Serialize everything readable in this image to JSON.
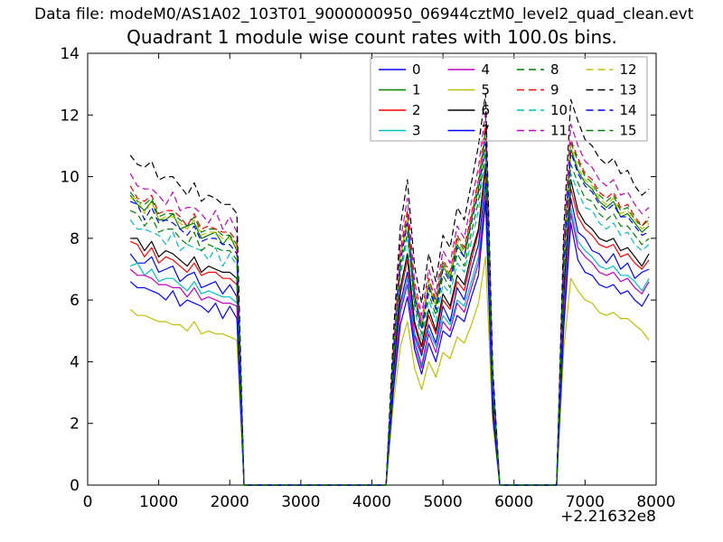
{
  "header": {
    "data_file_label": "Data file: modeM0/AS1A02_103T01_9000000950_06944cztM0_level2_quad_clean.evt"
  },
  "chart_data": {
    "type": "line",
    "title": "Quadrant 1 module wise count rates with 100.0s bins.",
    "xlabel": "",
    "ylabel": "",
    "x_offset_text": "+2.21632e8",
    "xlim": [
      0,
      8000
    ],
    "ylim": [
      0,
      14
    ],
    "xticks": [
      0,
      1000,
      2000,
      3000,
      4000,
      5000,
      6000,
      7000,
      8000
    ],
    "yticks": [
      0,
      2,
      4,
      6,
      8,
      10,
      12,
      14
    ],
    "grid": false,
    "legend": {
      "location": "upper center",
      "columns": 4,
      "frame_color": "#b2b2b2"
    },
    "x": [
      600,
      700,
      800,
      900,
      1000,
      1100,
      1200,
      1300,
      1400,
      1500,
      1600,
      1700,
      1800,
      1900,
      2000,
      2100,
      2200,
      4100,
      4200,
      4300,
      4400,
      4500,
      4600,
      4700,
      4800,
      4900,
      5000,
      5100,
      5200,
      5300,
      5400,
      5500,
      5600,
      5700,
      5800,
      6500,
      6600,
      6700,
      6800,
      6900,
      7000,
      7100,
      7200,
      7300,
      7400,
      7500,
      7600,
      7700,
      7800,
      7900
    ],
    "series": [
      {
        "name": "0",
        "color": "#0000ff",
        "dash": "solid",
        "values": [
          7.5,
          7.2,
          7.2,
          7.4,
          6.9,
          7.0,
          7.1,
          6.6,
          6.8,
          6.9,
          6.4,
          6.5,
          6.6,
          6.2,
          6.5,
          6.1,
          0,
          0,
          0,
          3.4,
          5.9,
          6.9,
          4.9,
          4.2,
          5.2,
          4.6,
          5.8,
          5.3,
          6.4,
          6.0,
          7.0,
          7.8,
          9.8,
          2.7,
          0,
          0,
          0,
          5.9,
          9.3,
          8.2,
          8.0,
          7.6,
          7.5,
          7.2,
          7.5,
          7.0,
          7.2,
          6.7,
          6.9,
          7.0
        ]
      },
      {
        "name": "1",
        "color": "#007f00",
        "dash": "solid",
        "values": [
          9.4,
          9.1,
          8.9,
          9.2,
          8.6,
          8.6,
          8.8,
          8.3,
          8.4,
          8.5,
          8.0,
          8.1,
          8.2,
          7.8,
          8.1,
          7.6,
          0,
          0,
          0,
          4.2,
          7.4,
          8.6,
          6.1,
          5.1,
          6.5,
          5.8,
          7.1,
          6.7,
          7.8,
          7.4,
          8.6,
          9.6,
          11.4,
          3.3,
          0,
          0,
          0,
          7.3,
          10.9,
          10.2,
          9.8,
          9.6,
          9.2,
          9.0,
          9.2,
          8.7,
          8.8,
          8.5,
          8.2,
          8.4
        ]
      },
      {
        "name": "2",
        "color": "#ff0000",
        "dash": "solid",
        "values": [
          7.9,
          7.8,
          7.4,
          7.7,
          7.2,
          7.4,
          7.3,
          7.1,
          6.9,
          7.2,
          6.8,
          6.9,
          6.9,
          6.7,
          6.7,
          6.5,
          0,
          0,
          0,
          3.6,
          6.2,
          7.3,
          5.2,
          4.3,
          5.5,
          4.9,
          6.0,
          5.7,
          6.6,
          6.3,
          7.3,
          8.2,
          10.2,
          2.8,
          0,
          0,
          0,
          6.2,
          9.6,
          8.7,
          8.3,
          8.1,
          7.8,
          7.7,
          7.8,
          7.4,
          7.5,
          7.2,
          7.0,
          7.3
        ]
      },
      {
        "name": "3",
        "color": "#00bfbf",
        "dash": "solid",
        "values": [
          7.1,
          7.2,
          6.8,
          7.0,
          6.6,
          6.7,
          6.7,
          6.5,
          6.3,
          6.6,
          6.2,
          6.3,
          6.2,
          6.1,
          6.1,
          5.9,
          0,
          0,
          0,
          3.2,
          5.7,
          6.7,
          4.8,
          3.9,
          5.0,
          4.5,
          5.5,
          5.2,
          6.0,
          5.8,
          6.6,
          7.4,
          9.6,
          2.6,
          0,
          0,
          0,
          5.6,
          9.0,
          7.9,
          7.6,
          7.4,
          7.1,
          7.0,
          7.1,
          6.8,
          6.8,
          6.6,
          6.3,
          6.7
        ]
      },
      {
        "name": "4",
        "color": "#bf00bf",
        "dash": "solid",
        "values": [
          7.0,
          6.8,
          6.8,
          6.7,
          6.5,
          6.5,
          6.4,
          6.4,
          6.1,
          6.4,
          6.0,
          6.1,
          6.0,
          5.9,
          5.9,
          5.8,
          0,
          0,
          0,
          3.1,
          5.6,
          6.5,
          4.6,
          3.8,
          4.9,
          4.3,
          5.3,
          5.0,
          5.9,
          5.6,
          6.4,
          7.2,
          9.4,
          2.5,
          0,
          0,
          0,
          5.5,
          8.8,
          7.7,
          7.4,
          7.2,
          6.9,
          6.8,
          6.9,
          6.6,
          6.7,
          6.4,
          6.2,
          6.6
        ]
      },
      {
        "name": "5",
        "color": "#bfbf00",
        "dash": "solid",
        "values": [
          5.7,
          5.5,
          5.5,
          5.4,
          5.3,
          5.3,
          5.2,
          5.2,
          5.0,
          5.3,
          4.9,
          5.0,
          4.9,
          4.9,
          4.8,
          4.7,
          0,
          0,
          0,
          2.6,
          4.5,
          5.3,
          3.8,
          3.1,
          4.0,
          3.5,
          4.3,
          4.1,
          4.8,
          4.6,
          5.2,
          5.9,
          7.4,
          2.0,
          0,
          0,
          0,
          4.4,
          6.7,
          6.3,
          6.0,
          5.9,
          5.6,
          5.5,
          5.6,
          5.4,
          5.4,
          5.2,
          5.0,
          4.7
        ]
      },
      {
        "name": "6",
        "color": "#000000",
        "dash": "solid",
        "values": [
          8.0,
          8.0,
          7.6,
          7.9,
          7.4,
          7.6,
          7.5,
          7.3,
          7.1,
          7.4,
          6.9,
          7.1,
          7.0,
          6.9,
          6.9,
          6.7,
          0,
          0,
          0,
          3.6,
          6.4,
          7.5,
          5.3,
          4.5,
          5.7,
          5.0,
          6.2,
          5.8,
          6.8,
          6.5,
          7.5,
          8.3,
          10.4,
          2.9,
          0,
          0,
          0,
          6.3,
          9.9,
          8.9,
          8.5,
          8.3,
          8.0,
          7.9,
          8.0,
          7.6,
          7.7,
          7.4,
          7.1,
          7.5
        ]
      },
      {
        "name": "7",
        "color": "#0000ff",
        "dash": "solid",
        "values": [
          6.6,
          6.4,
          6.4,
          6.3,
          6.2,
          6.0,
          6.3,
          5.8,
          6.0,
          5.9,
          5.8,
          5.6,
          5.9,
          5.4,
          5.8,
          5.4,
          0,
          0,
          0,
          3.0,
          5.2,
          6.1,
          4.4,
          3.6,
          4.6,
          4.0,
          5.0,
          4.8,
          5.5,
          5.3,
          6.1,
          6.8,
          9.2,
          2.3,
          0,
          0,
          0,
          5.1,
          8.5,
          7.3,
          6.9,
          6.8,
          6.5,
          6.4,
          6.5,
          6.2,
          6.3,
          6.0,
          5.8,
          6.2
        ]
      },
      {
        "name": "8",
        "color": "#007f00",
        "dash": "dashed",
        "values": [
          9.5,
          9.2,
          9.1,
          9.3,
          8.7,
          8.8,
          8.8,
          8.6,
          8.4,
          8.7,
          8.2,
          8.3,
          8.3,
          8.1,
          8.1,
          7.8,
          0,
          0,
          0,
          4.3,
          7.5,
          8.8,
          6.3,
          5.2,
          6.7,
          5.9,
          7.2,
          6.8,
          8.0,
          7.6,
          8.7,
          9.8,
          11.5,
          3.4,
          0,
          0,
          0,
          7.4,
          11.1,
          10.5,
          10.0,
          9.8,
          9.4,
          9.2,
          9.4,
          8.9,
          9.0,
          8.6,
          8.4,
          8.6
        ]
      },
      {
        "name": "9",
        "color": "#ff0000",
        "dash": "dashed",
        "values": [
          9.7,
          9.3,
          9.2,
          9.4,
          8.8,
          8.9,
          8.9,
          8.7,
          8.4,
          8.8,
          8.3,
          8.4,
          8.3,
          8.2,
          8.2,
          7.9,
          0,
          0,
          0,
          4.3,
          7.6,
          8.9,
          6.3,
          5.3,
          6.7,
          6.0,
          7.3,
          6.9,
          8.1,
          7.7,
          8.8,
          9.9,
          11.7,
          3.5,
          0,
          0,
          0,
          7.5,
          11.2,
          10.6,
          10.1,
          9.9,
          9.5,
          9.3,
          9.5,
          9.0,
          9.1,
          8.7,
          8.4,
          8.7
        ]
      },
      {
        "name": "10",
        "color": "#00bfbf",
        "dash": "dashed",
        "values": [
          8.6,
          8.3,
          8.3,
          8.2,
          8.1,
          7.8,
          8.2,
          7.6,
          7.8,
          7.7,
          7.6,
          7.3,
          7.7,
          7.1,
          7.5,
          7.1,
          0,
          0,
          0,
          3.9,
          6.8,
          8.0,
          5.7,
          4.7,
          6.0,
          5.3,
          6.5,
          6.2,
          7.2,
          6.9,
          7.9,
          8.9,
          10.8,
          3.1,
          0,
          0,
          0,
          6.7,
          10.1,
          9.5,
          9.0,
          8.9,
          8.5,
          8.3,
          8.5,
          8.1,
          8.2,
          7.8,
          7.6,
          7.8
        ]
      },
      {
        "name": "11",
        "color": "#bf00bf",
        "dash": "dashed",
        "values": [
          10.1,
          9.7,
          9.6,
          9.6,
          9.4,
          9.1,
          9.5,
          8.9,
          9.0,
          9.0,
          8.8,
          8.5,
          8.9,
          8.3,
          8.7,
          8.2,
          0,
          0,
          0,
          4.5,
          7.9,
          9.3,
          6.6,
          5.5,
          7.0,
          6.2,
          7.6,
          7.2,
          8.4,
          8.0,
          9.2,
          10.3,
          12.1,
          3.6,
          0,
          0,
          0,
          7.8,
          11.7,
          11.0,
          10.5,
          10.3,
          9.9,
          9.7,
          9.9,
          9.4,
          9.5,
          9.1,
          8.8,
          9.0
        ]
      },
      {
        "name": "12",
        "color": "#bfbf00",
        "dash": "dashed",
        "values": [
          9.3,
          9.3,
          8.8,
          9.2,
          8.6,
          8.7,
          8.7,
          8.5,
          8.3,
          8.6,
          8.1,
          8.2,
          8.2,
          8.0,
          8.0,
          7.7,
          0,
          0,
          0,
          4.2,
          7.4,
          8.7,
          6.2,
          5.2,
          6.6,
          5.8,
          7.1,
          6.8,
          7.9,
          7.5,
          8.6,
          9.7,
          11.4,
          3.4,
          0,
          0,
          0,
          7.3,
          11.0,
          10.3,
          9.9,
          9.7,
          9.3,
          9.1,
          9.3,
          8.8,
          8.9,
          8.6,
          8.3,
          8.5
        ]
      },
      {
        "name": "13",
        "color": "#000000",
        "dash": "dashed",
        "values": [
          10.7,
          10.4,
          10.3,
          10.5,
          9.9,
          10.0,
          10.0,
          9.7,
          9.4,
          9.8,
          9.2,
          9.4,
          9.3,
          9.1,
          9.1,
          8.8,
          0,
          0,
          0,
          4.8,
          8.4,
          9.9,
          7.1,
          5.9,
          7.5,
          6.6,
          8.1,
          7.7,
          9.0,
          8.6,
          9.8,
          11.0,
          12.7,
          3.8,
          0,
          0,
          0,
          8.3,
          12.5,
          11.8,
          11.2,
          11.0,
          10.6,
          10.4,
          10.6,
          10.1,
          10.2,
          9.7,
          9.4,
          9.6
        ]
      },
      {
        "name": "14",
        "color": "#0000ff",
        "dash": "dashed",
        "values": [
          9.2,
          9.1,
          8.6,
          9.0,
          8.5,
          8.6,
          8.5,
          8.3,
          8.1,
          8.4,
          7.9,
          8.0,
          8.0,
          7.8,
          7.8,
          7.5,
          0,
          0,
          0,
          4.1,
          7.2,
          8.5,
          6.1,
          5.1,
          6.4,
          5.7,
          7.0,
          6.6,
          7.7,
          7.4,
          8.5,
          9.5,
          11.2,
          3.3,
          0,
          0,
          0,
          7.2,
          10.8,
          10.1,
          9.7,
          9.5,
          9.1,
          8.9,
          9.1,
          8.7,
          8.7,
          8.4,
          8.1,
          8.2
        ]
      },
      {
        "name": "15",
        "color": "#007f00",
        "dash": "dashed",
        "values": [
          8.9,
          8.8,
          8.4,
          8.7,
          8.2,
          8.3,
          8.3,
          8.0,
          7.8,
          8.2,
          7.6,
          7.8,
          7.7,
          7.6,
          7.6,
          7.3,
          0,
          0,
          0,
          4.0,
          7.0,
          8.2,
          5.9,
          4.9,
          6.2,
          5.5,
          6.8,
          6.4,
          7.5,
          7.1,
          8.2,
          9.2,
          10.9,
          3.2,
          0,
          0,
          0,
          6.9,
          10.4,
          9.8,
          9.3,
          9.2,
          8.8,
          8.6,
          8.8,
          8.4,
          8.4,
          8.1,
          7.8,
          8.0
        ]
      }
    ]
  }
}
